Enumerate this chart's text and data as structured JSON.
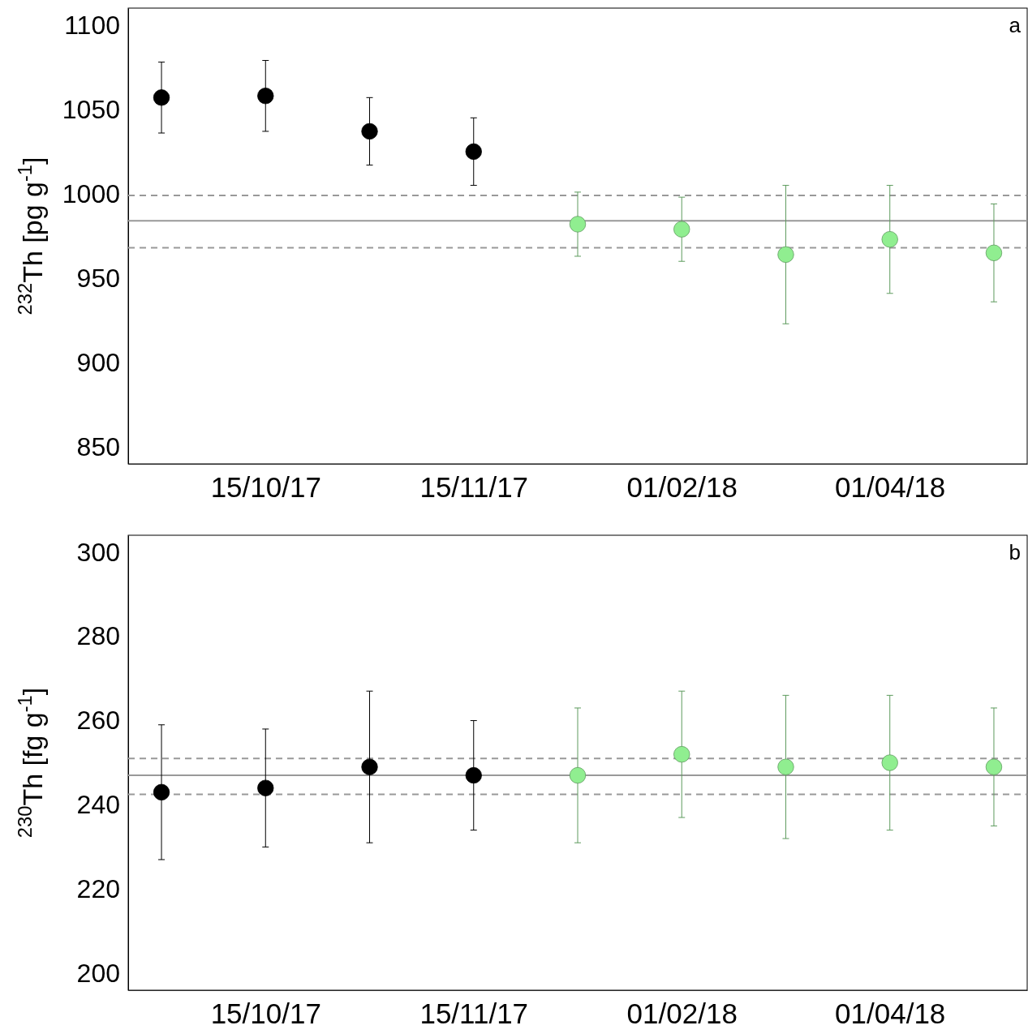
{
  "chart_data": [
    {
      "type": "scatter",
      "ylabel": "$^{232}$Th [pg g$^{-1}$]",
      "categories": [
        null,
        "15/10/17",
        null,
        "15/11/17",
        null,
        "01/02/18",
        null,
        "01/04/18",
        null
      ],
      "ylim": [
        840,
        1110
      ],
      "yticks": [
        850,
        900,
        950,
        1000,
        1050,
        1100
      ],
      "marker": "circle",
      "series": [
        {
          "color": "#000000",
          "values": [
            1057,
            1058,
            1037,
            1025,
            null,
            null,
            null,
            null,
            null
          ],
          "errors": [
            21,
            21,
            20,
            20,
            null,
            null,
            null,
            null,
            null
          ]
        },
        {
          "color": "#90ee90",
          "values": [
            null,
            null,
            null,
            null,
            982,
            979,
            964,
            973,
            965
          ],
          "errors": [
            null,
            null,
            null,
            null,
            19,
            19,
            41,
            32,
            29
          ]
        }
      ],
      "ref_lines": [
        {
          "axis": "y",
          "value": 984,
          "color": "#999999",
          "line_style": "solid"
        },
        {
          "axis": "y",
          "value": 999,
          "color": "#999999",
          "line_style": "dashed"
        },
        {
          "axis": "y",
          "value": 968,
          "color": "#999999",
          "line_style": "dashed"
        }
      ],
      "annotations": [
        "a"
      ]
    },
    {
      "type": "scatter",
      "ylabel": "$^{230}$Th [fg g$^{-1}$]",
      "categories": [
        null,
        "15/10/17",
        null,
        "15/11/17",
        null,
        "01/02/18",
        null,
        "01/04/18",
        null
      ],
      "ylim": [
        196,
        304
      ],
      "yticks": [
        200,
        220,
        240,
        260,
        280,
        300
      ],
      "marker": "circle",
      "series": [
        {
          "color": "#000000",
          "values": [
            243,
            244,
            249,
            247,
            null,
            null,
            null,
            null,
            null
          ],
          "errors": [
            16,
            14,
            18,
            13,
            null,
            null,
            null,
            null,
            null
          ]
        },
        {
          "color": "#90ee90",
          "values": [
            null,
            null,
            null,
            null,
            247,
            252,
            249,
            250,
            249
          ],
          "errors": [
            null,
            null,
            null,
            null,
            16,
            15,
            17,
            16,
            14
          ]
        }
      ],
      "ref_lines": [
        {
          "axis": "y",
          "value": 247,
          "color": "#999999",
          "line_style": "solid"
        },
        {
          "axis": "y",
          "value": 251,
          "color": "#999999",
          "line_style": "dashed"
        },
        {
          "axis": "y",
          "value": 242.5,
          "color": "#999999",
          "line_style": "dashed"
        }
      ],
      "annotations": [
        "b"
      ]
    }
  ]
}
